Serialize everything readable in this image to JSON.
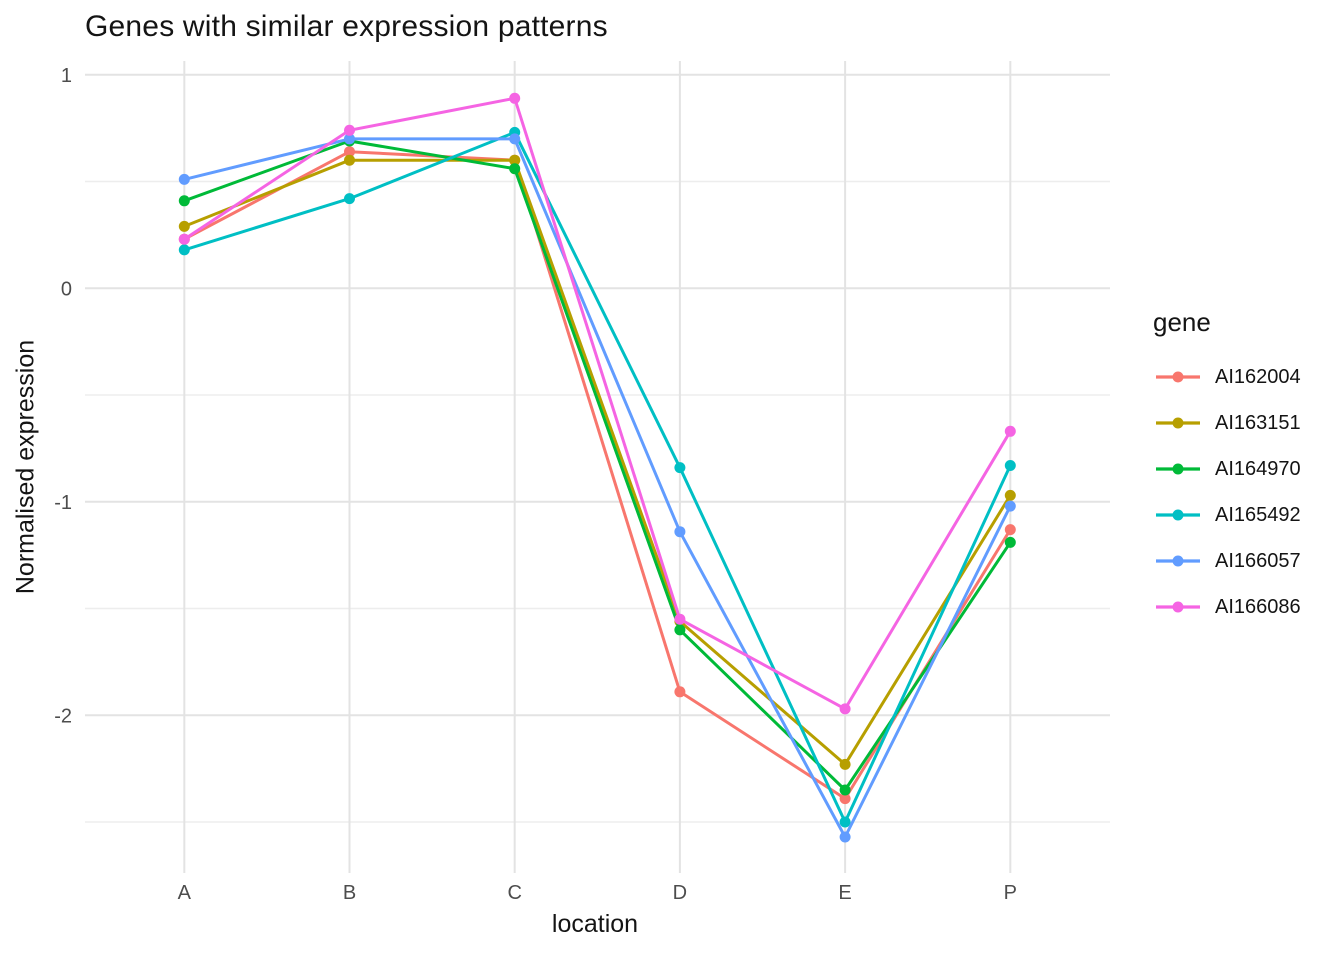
{
  "chart_data": {
    "type": "line",
    "title": "Genes with similar expression patterns",
    "xlabel": "location",
    "ylabel": "Normalised expression",
    "legend_title": "gene",
    "legend_position": "right",
    "grid": true,
    "categories": [
      "A",
      "B",
      "C",
      "D",
      "E",
      "P"
    ],
    "y_ticks": [
      1,
      0,
      -1,
      -2
    ],
    "y_minor_gridlines": [
      0.5,
      -0.5,
      -1.5,
      -2.5
    ],
    "ylim": [
      -2.74,
      1.06
    ],
    "series": [
      {
        "name": "AI162004",
        "color": "#F8766D",
        "values": [
          0.23,
          0.64,
          0.6,
          -1.89,
          -2.39,
          -1.13
        ]
      },
      {
        "name": "AI163151",
        "color": "#B79F00",
        "values": [
          0.29,
          0.6,
          0.6,
          -1.56,
          -2.23,
          -0.97
        ]
      },
      {
        "name": "AI164970",
        "color": "#00BA38",
        "values": [
          0.41,
          0.69,
          0.56,
          -1.6,
          -2.35,
          -1.19
        ]
      },
      {
        "name": "AI165492",
        "color": "#00BFC4",
        "values": [
          0.18,
          0.42,
          0.73,
          -0.84,
          -2.5,
          -0.83
        ]
      },
      {
        "name": "AI166057",
        "color": "#619CFF",
        "values": [
          0.51,
          0.7,
          0.7,
          -1.14,
          -2.57,
          -1.02
        ]
      },
      {
        "name": "AI166086",
        "color": "#F564E3",
        "values": [
          0.23,
          0.74,
          0.89,
          -1.55,
          -1.97,
          -0.67
        ]
      }
    ]
  },
  "colors": {
    "background": "#FFFFFF",
    "grid_major": "#E3E3E3",
    "grid_minor": "#EDEDED",
    "tick_label": "#4D4D4D",
    "text": "#141414"
  }
}
